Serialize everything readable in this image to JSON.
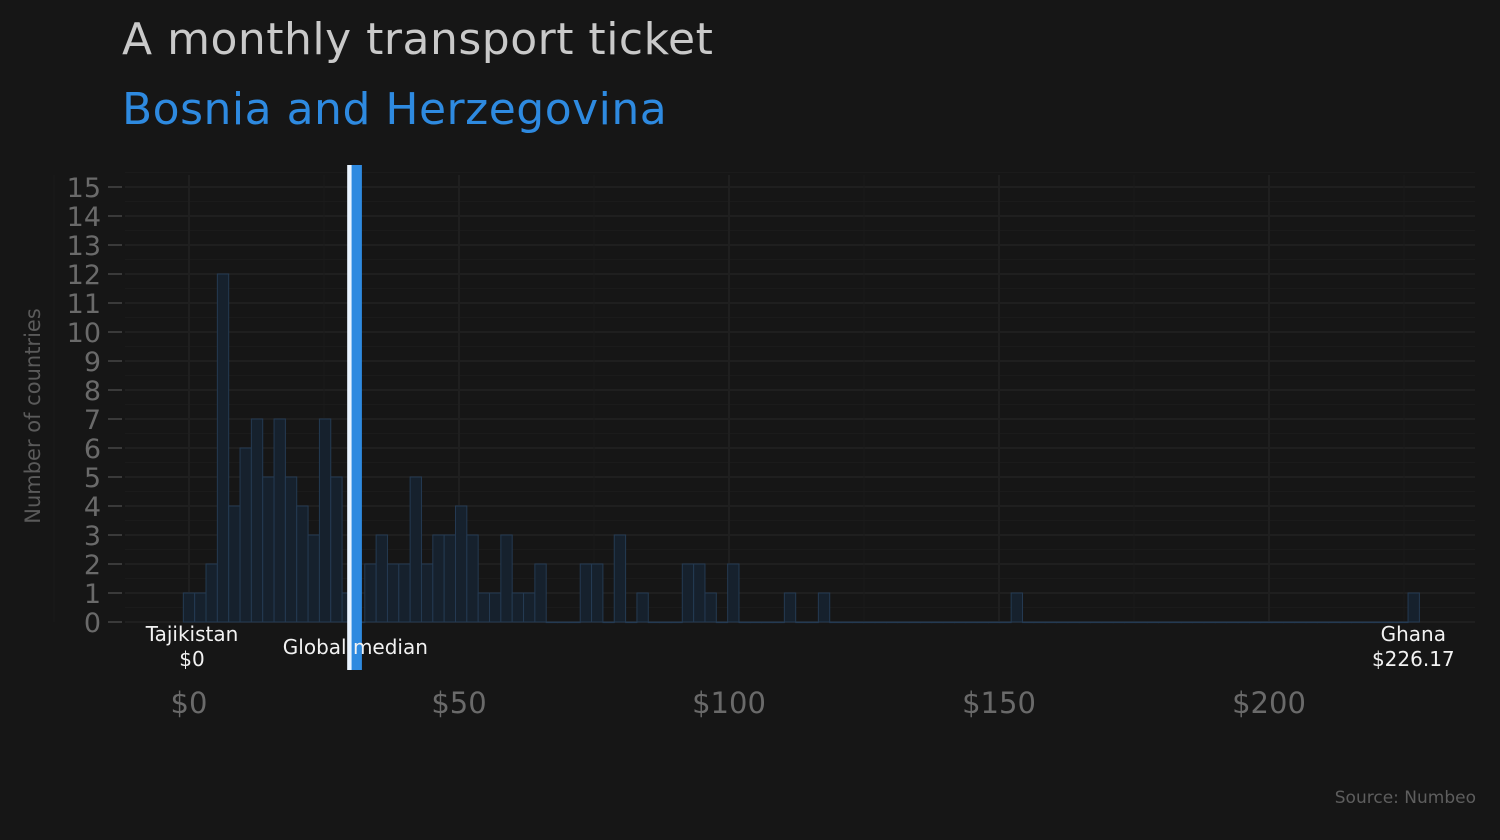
{
  "title": "A monthly transport ticket",
  "subtitle": "Bosnia and Herzegovina",
  "source": "Source: Numbeo",
  "chart_data": {
    "type": "bar",
    "title": "A monthly transport ticket",
    "subtitle": "Bosnia and Herzegovina",
    "xlabel": "",
    "ylabel": "Number of countries",
    "xlim": [
      -12,
      238
    ],
    "ylim": [
      0,
      15.6
    ],
    "bin_width": 2.1,
    "bin_start": -1.05,
    "values": [
      1,
      1,
      2,
      12,
      4,
      6,
      7,
      5,
      7,
      5,
      4,
      3,
      7,
      5,
      1,
      0,
      2,
      3,
      2,
      2,
      5,
      2,
      3,
      3,
      4,
      3,
      1,
      1,
      3,
      1,
      1,
      2,
      0,
      0,
      0,
      2,
      2,
      0,
      3,
      0,
      1,
      0,
      0,
      0,
      2,
      2,
      1,
      0,
      2,
      0,
      0,
      0,
      0,
      1,
      0,
      0,
      1,
      0,
      0,
      0,
      0,
      0,
      0,
      0,
      0,
      0,
      0,
      0,
      0,
      0,
      0,
      0,
      0,
      1,
      0,
      0,
      0,
      0,
      0,
      0,
      0,
      0,
      0,
      0,
      0,
      0,
      0,
      0,
      0,
      0,
      0,
      0,
      0,
      0,
      0,
      0,
      0,
      0,
      0,
      0,
      0,
      0,
      0,
      0,
      0,
      0,
      0,
      0,
      1
    ],
    "x_ticks": [
      0,
      50,
      100,
      150,
      200
    ],
    "x_tick_labels": [
      "$0",
      "$50",
      "$100",
      "$150",
      "$200"
    ],
    "y_ticks": [
      0,
      1,
      2,
      3,
      4,
      5,
      6,
      7,
      8,
      9,
      10,
      11,
      12,
      13,
      14,
      15
    ],
    "y_tick_labels": [
      "0",
      "1",
      "2",
      "3",
      "4",
      "5",
      "6",
      "7",
      "8",
      "9",
      "10",
      "11",
      "12",
      "13",
      "14",
      "15"
    ],
    "grid": true,
    "global_median": 29.7,
    "highlight_value": 31.0,
    "annotations": [
      {
        "id": "min",
        "name": "Tajikistan",
        "value_label": "$0",
        "x": 0
      },
      {
        "id": "median",
        "name": "Global median",
        "x": 29.7
      },
      {
        "id": "max",
        "name": "Ghana",
        "value_label": "$226.17",
        "x": 226.17
      }
    ],
    "colors": {
      "bar_fill": "#16212d",
      "bar_stroke": "#243a52",
      "grid": "#1f1f1f",
      "highlight": "#2e8ae0",
      "median": "#eaf4ff"
    }
  }
}
